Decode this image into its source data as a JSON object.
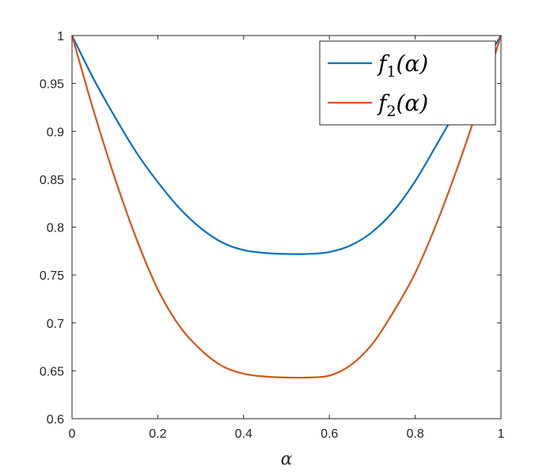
{
  "chart_data": {
    "type": "line",
    "title": "",
    "xlabel": "α",
    "ylabel": "",
    "xlim": [
      0,
      1
    ],
    "ylim": [
      0.6,
      1
    ],
    "xticks": [
      0,
      0.2,
      0.4,
      0.6,
      0.8,
      1
    ],
    "xtick_labels": [
      "0",
      "0.2",
      "0.4",
      "0.6",
      "0.8",
      "1"
    ],
    "yticks": [
      0.6,
      0.65,
      0.7,
      0.75,
      0.8,
      0.85,
      0.9,
      0.95,
      1
    ],
    "ytick_labels": [
      "0.6",
      "0.65",
      "0.7",
      "0.75",
      "0.8",
      "0.85",
      "0.9",
      "0.95",
      "1"
    ],
    "grid": false,
    "legend_position": "top-right",
    "x": [
      0,
      0.05,
      0.1,
      0.15,
      0.2,
      0.25,
      0.3,
      0.35,
      0.4,
      0.45,
      0.5,
      0.55,
      0.6,
      0.65,
      0.7,
      0.75,
      0.8,
      0.85,
      0.9,
      0.95,
      1
    ],
    "series": [
      {
        "name": "f1(α)",
        "legend_base": "f",
        "legend_sub": "1",
        "legend_arg": "(α)",
        "color": "#0072BD",
        "values": [
          1.0,
          0.955,
          0.915,
          0.878,
          0.847,
          0.82,
          0.799,
          0.784,
          0.776,
          0.773,
          0.772,
          0.772,
          0.774,
          0.781,
          0.795,
          0.817,
          0.848,
          0.886,
          0.925,
          0.963,
          1.0
        ]
      },
      {
        "name": "f2(α)",
        "legend_base": "f",
        "legend_sub": "2",
        "legend_arg": "(α)",
        "color": "#D95319",
        "values": [
          1.0,
          0.922,
          0.851,
          0.788,
          0.735,
          0.697,
          0.672,
          0.655,
          0.647,
          0.644,
          0.643,
          0.643,
          0.645,
          0.656,
          0.678,
          0.712,
          0.752,
          0.804,
          0.864,
          0.93,
          1.0
        ]
      }
    ]
  }
}
